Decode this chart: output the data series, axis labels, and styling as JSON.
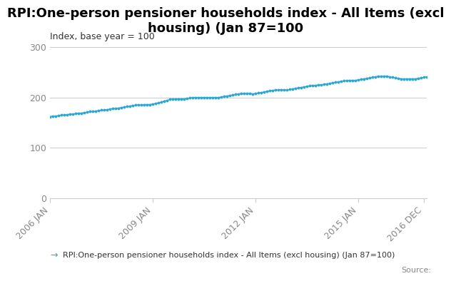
{
  "title": "RPI:One-person pensioner households index - All Items (excl\nhousing) (Jan 87=100",
  "ylabel": "Index, base year = 100",
  "legend_label": "RPI:One-person pensioner households index - All Items (excl housing) (Jan 87=100)",
  "source": "Source:",
  "line_color": "#29a8d4",
  "marker_color": "#29a8d4",
  "ylim": [
    0,
    300
  ],
  "yticks": [
    0,
    100,
    200,
    300
  ],
  "xtick_labels": [
    "2006 JAN",
    "2009 JAN",
    "2012 JAN",
    "2015 JAN",
    "2016 DEC"
  ],
  "xtick_positions": [
    0,
    36,
    72,
    108,
    131
  ],
  "data_values": [
    162,
    163,
    163,
    164,
    165,
    165,
    166,
    167,
    167,
    168,
    169,
    169,
    170,
    171,
    172,
    172,
    173,
    174,
    175,
    175,
    176,
    177,
    178,
    178,
    179,
    180,
    181,
    182,
    183,
    184,
    185,
    185,
    185,
    186,
    186,
    186,
    187,
    188,
    189,
    191,
    193,
    194,
    196,
    197,
    197,
    197,
    197,
    197,
    198,
    199,
    200,
    200,
    200,
    200,
    200,
    200,
    200,
    200,
    200,
    200,
    201,
    202,
    203,
    204,
    205,
    206,
    207,
    208,
    208,
    208,
    208,
    207,
    208,
    209,
    210,
    211,
    212,
    213,
    214,
    215,
    215,
    215,
    215,
    215,
    216,
    217,
    218,
    219,
    220,
    221,
    222,
    223,
    224,
    224,
    225,
    225,
    226,
    227,
    228,
    229,
    230,
    231,
    232,
    233,
    233,
    234,
    234,
    234,
    235,
    236,
    237,
    238,
    239,
    240,
    241,
    242,
    242,
    242,
    242,
    241,
    240,
    239,
    238,
    237,
    237,
    237,
    237,
    237,
    237,
    238,
    239,
    240,
    241
  ],
  "background_color": "#ffffff",
  "grid_color": "#cccccc",
  "title_fontsize": 13,
  "label_fontsize": 9,
  "legend_fontsize": 8,
  "source_fontsize": 8,
  "tick_label_fontsize": 9
}
